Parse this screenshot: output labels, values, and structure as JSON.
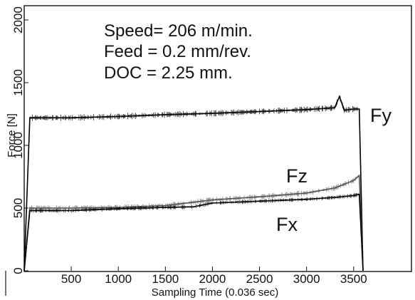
{
  "chart_data": {
    "type": "line",
    "title": "",
    "xlabel": "Sampling Time (0.036 sec)",
    "ylabel": "Force [N]",
    "xlim": [
      0,
      3600
    ],
    "ylim": [
      0,
      2000
    ],
    "x_ticks": [
      500,
      1000,
      1500,
      2000,
      2500,
      3000,
      3500
    ],
    "y_ticks": [
      0,
      500,
      1000,
      1500,
      2000
    ],
    "grid": false,
    "legend": "none",
    "annotations": [
      "Speed= 206 m/min.",
      "Feed = 0.2 mm/rev.",
      "DOC = 2.25 mm."
    ],
    "series": [
      {
        "name": "Fy",
        "color": "#000000",
        "x": [
          0,
          60,
          500,
          1000,
          1500,
          2000,
          2500,
          3000,
          3300,
          3350,
          3400,
          3500,
          3560,
          3600
        ],
        "y": [
          0,
          1220,
          1220,
          1230,
          1245,
          1255,
          1270,
          1285,
          1300,
          1390,
          1280,
          1290,
          1290,
          0
        ]
      },
      {
        "name": "Fz",
        "color": "#555555",
        "x": [
          0,
          60,
          500,
          1000,
          1500,
          2000,
          2500,
          3000,
          3300,
          3500,
          3560,
          3600
        ],
        "y": [
          0,
          500,
          500,
          505,
          520,
          565,
          590,
          620,
          660,
          720,
          760,
          0
        ]
      },
      {
        "name": "Fx",
        "color": "#000000",
        "x": [
          0,
          60,
          500,
          1000,
          1500,
          1800,
          2000,
          2500,
          3000,
          3300,
          3500,
          3560,
          3600
        ],
        "y": [
          0,
          480,
          480,
          495,
          505,
          510,
          540,
          555,
          570,
          585,
          600,
          610,
          0
        ]
      }
    ]
  }
}
